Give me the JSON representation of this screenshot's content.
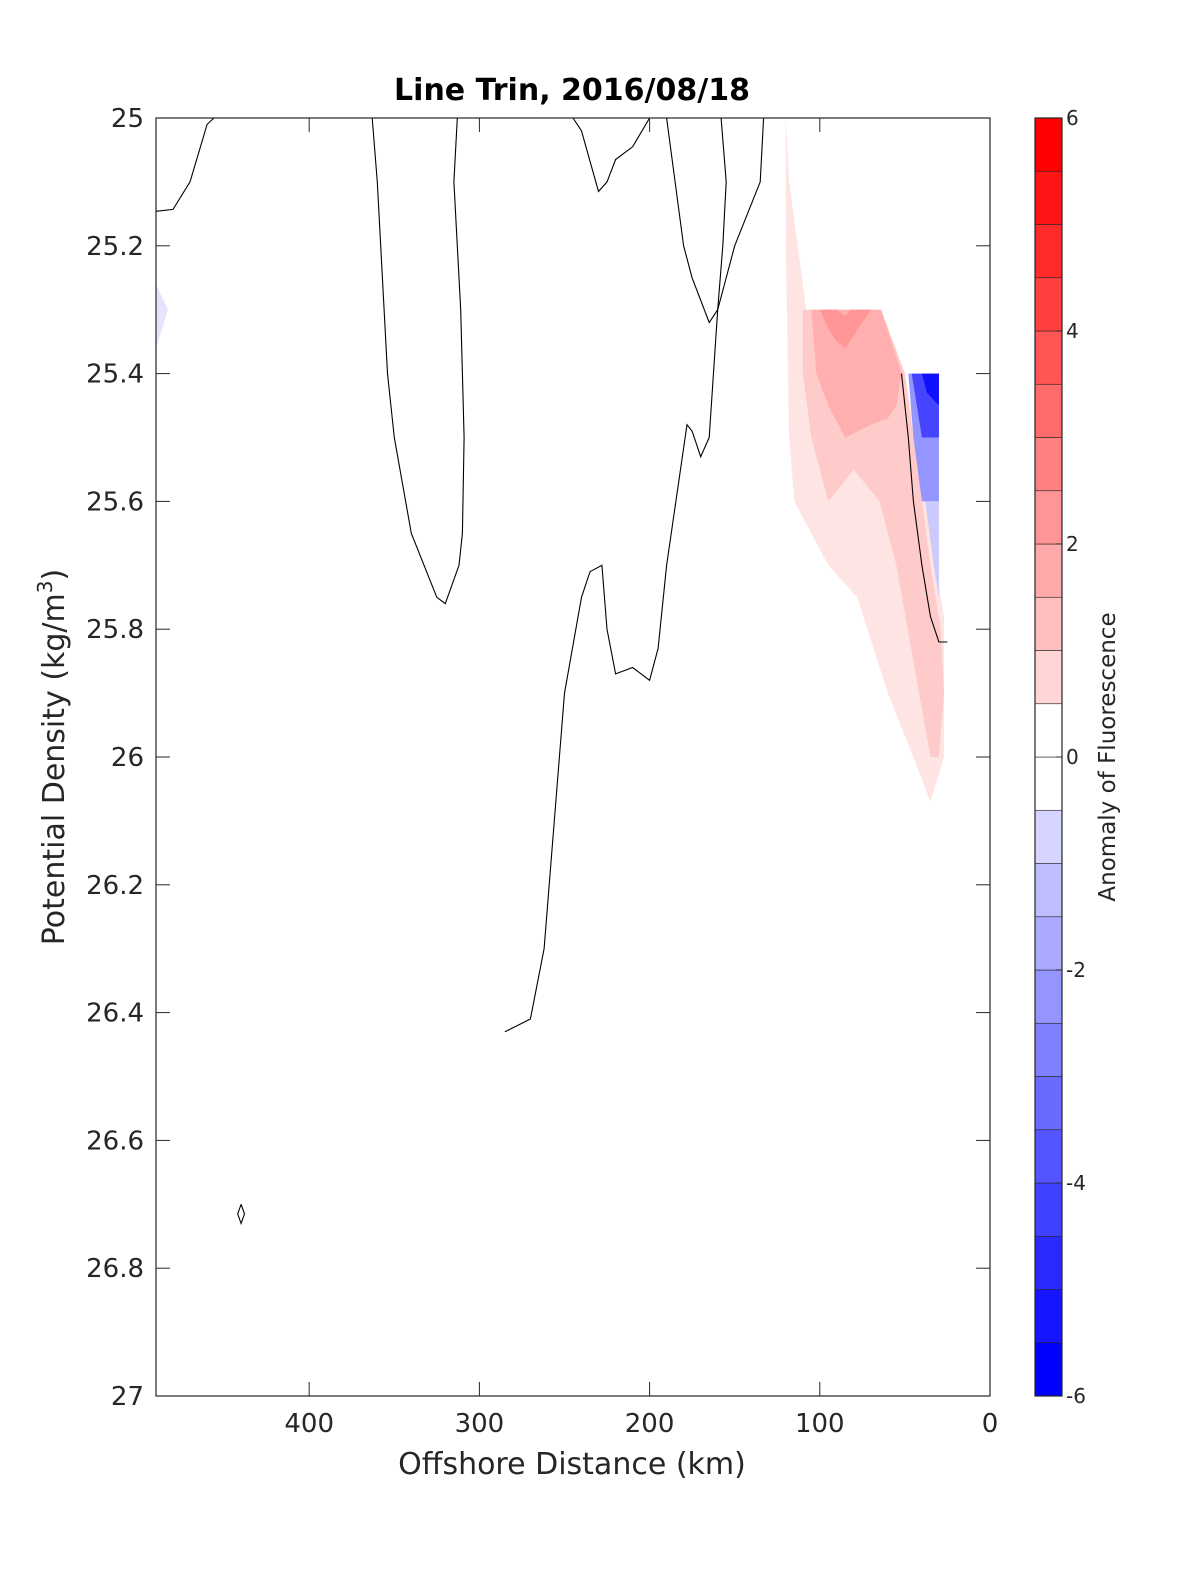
{
  "chart_data": {
    "type": "contour",
    "title": "Line Trin, 2016/08/18",
    "xlabel": "Offshore Distance (km)",
    "ylabel_main": "Potential Density (kg/m",
    "ylabel_sup": "3",
    "ylabel_close": ")",
    "xlim": [
      490,
      0
    ],
    "x_reversed": true,
    "ylim": [
      25,
      27
    ],
    "y_reversed": true,
    "xticks": [
      400,
      300,
      200,
      100,
      0
    ],
    "yticks": [
      25,
      25.2,
      25.4,
      25.6,
      25.8,
      26,
      26.2,
      26.4,
      26.6,
      26.8,
      27
    ],
    "ytick_labels": [
      "25",
      "25.2",
      "25.4",
      "25.6",
      "25.8",
      "26",
      "26.2",
      "26.4",
      "26.6",
      "26.8",
      "27"
    ],
    "xtick_labels": [
      "400",
      "300",
      "200",
      "100",
      "0"
    ],
    "colorbar": {
      "label": "Anomaly of Fluorescence",
      "lim": [
        -6,
        6
      ],
      "ticks": [
        -6,
        -4,
        -2,
        0,
        2,
        4,
        6
      ],
      "tick_labels": [
        "-6",
        "-4",
        "-2",
        "0",
        "2",
        "4",
        "6"
      ],
      "levels": [
        -6,
        -5.5,
        -5,
        -4.5,
        -4,
        -3.5,
        -3,
        -2.5,
        -2,
        -1.5,
        -1,
        -0.5,
        0,
        0.5,
        1,
        1.5,
        2,
        2.5,
        3,
        3.5,
        4,
        4.5,
        5,
        5.5,
        6
      ],
      "colormap": "blue-white-red"
    },
    "zero_contours": [
      [
        [
          490,
          25.146
        ],
        [
          480,
          25.143
        ],
        [
          470,
          25.1
        ],
        [
          460,
          25.01
        ],
        [
          456,
          25
        ]
      ],
      [
        [
          313,
          25
        ],
        [
          315,
          25.1
        ],
        [
          311,
          25.3
        ],
        [
          309,
          25.5
        ],
        [
          310,
          25.65
        ],
        [
          312,
          25.7
        ],
        [
          320,
          25.76
        ],
        [
          325,
          25.75
        ],
        [
          340,
          25.65
        ],
        [
          350,
          25.5
        ],
        [
          354,
          25.4
        ],
        [
          360,
          25.1
        ],
        [
          363,
          25
        ]
      ],
      [
        [
          245,
          25
        ],
        [
          240,
          25.02
        ],
        [
          230,
          25.115
        ],
        [
          225,
          25.1
        ],
        [
          220,
          25.065
        ],
        [
          210,
          25.045
        ],
        [
          200,
          25.0
        ]
      ],
      [
        [
          190,
          25
        ],
        [
          185,
          25.1
        ],
        [
          180,
          25.2
        ],
        [
          175,
          25.25
        ],
        [
          165,
          25.32
        ],
        [
          160,
          25.3
        ],
        [
          157,
          25.2
        ],
        [
          155,
          25.1
        ],
        [
          158,
          25.0
        ]
      ],
      [
        [
          133,
          25
        ],
        [
          135,
          25.1
        ],
        [
          150,
          25.2
        ],
        [
          160,
          25.3
        ],
        [
          165,
          25.5
        ],
        [
          170,
          25.53
        ],
        [
          175,
          25.49
        ],
        [
          178,
          25.48
        ],
        [
          190,
          25.7
        ],
        [
          195,
          25.83
        ],
        [
          200,
          25.88
        ],
        [
          210,
          25.86
        ],
        [
          220,
          25.87
        ],
        [
          225,
          25.8
        ],
        [
          228,
          25.7
        ],
        [
          235,
          25.71
        ],
        [
          240,
          25.75
        ],
        [
          250,
          25.9
        ],
        [
          262,
          26.3
        ],
        [
          270,
          26.41
        ],
        [
          285,
          26.43
        ]
      ],
      [
        [
          52,
          25.4
        ],
        [
          48,
          25.5
        ],
        [
          45,
          25.6
        ],
        [
          40,
          25.7
        ],
        [
          35,
          25.78
        ],
        [
          30,
          25.82
        ],
        [
          25,
          25.82
        ]
      ],
      [
        [
          440,
          26.7
        ],
        [
          438,
          26.715
        ],
        [
          440,
          26.73
        ],
        [
          442,
          26.715
        ],
        [
          440,
          26.7
        ]
      ]
    ],
    "filled_regions": [
      {
        "value": -0.5,
        "polygon": [
          [
            490,
            25.26
          ],
          [
            483,
            25.3
          ],
          [
            490,
            25.36
          ]
        ]
      },
      {
        "value": 0.5,
        "polygon": [
          [
            120,
            25.0
          ],
          [
            118,
            25.1
          ],
          [
            113,
            25.2
          ],
          [
            108,
            25.3
          ],
          [
            100,
            25.3
          ],
          [
            70,
            25.3
          ],
          [
            64,
            25.3
          ],
          [
            50,
            25.4
          ],
          [
            44,
            25.5
          ],
          [
            38,
            25.6
          ],
          [
            32,
            25.7
          ],
          [
            27,
            25.78
          ],
          [
            27,
            25.8
          ],
          [
            27,
            25.9
          ],
          [
            27,
            26.0
          ],
          [
            35,
            26.07
          ],
          [
            45,
            26.0
          ],
          [
            60,
            25.9
          ],
          [
            78,
            25.75
          ],
          [
            95,
            25.7
          ],
          [
            115,
            25.6
          ],
          [
            118,
            25.5
          ],
          [
            120,
            25.2
          ]
        ]
      },
      {
        "value": 1.0,
        "polygon": [
          [
            110,
            25.3
          ],
          [
            100,
            25.3
          ],
          [
            70,
            25.3
          ],
          [
            64,
            25.3
          ],
          [
            50,
            25.4
          ],
          [
            45,
            25.5
          ],
          [
            40,
            25.6
          ],
          [
            35,
            25.7
          ],
          [
            29,
            25.8
          ],
          [
            27,
            25.9
          ],
          [
            30,
            26.0
          ],
          [
            35,
            26.0
          ],
          [
            45,
            25.85
          ],
          [
            55,
            25.7
          ],
          [
            65,
            25.6
          ],
          [
            80,
            25.55
          ],
          [
            95,
            25.6
          ],
          [
            105,
            25.5
          ],
          [
            110,
            25.4
          ]
        ]
      },
      {
        "value": 1.5,
        "polygon": [
          [
            105,
            25.3
          ],
          [
            100,
            25.3
          ],
          [
            70,
            25.3
          ],
          [
            64,
            25.3
          ],
          [
            52,
            25.4
          ],
          [
            55,
            25.45
          ],
          [
            60,
            25.47
          ],
          [
            70,
            25.48
          ],
          [
            85,
            25.5
          ],
          [
            95,
            25.45
          ],
          [
            102,
            25.4
          ]
        ]
      },
      {
        "value": 2.0,
        "polygon": [
          [
            100,
            25.3
          ],
          [
            90,
            25.3
          ],
          [
            85,
            25.31
          ],
          [
            82,
            25.3
          ],
          [
            70,
            25.3
          ],
          [
            75,
            25.32
          ],
          [
            85,
            25.36
          ],
          [
            90,
            25.35
          ],
          [
            95,
            25.33
          ]
        ]
      },
      {
        "value": -2.0,
        "polygon": [
          [
            52,
            25.4
          ],
          [
            30,
            25.4
          ],
          [
            30,
            25.6
          ],
          [
            40,
            25.6
          ],
          [
            45,
            25.5
          ],
          [
            48,
            25.4
          ]
        ]
      },
      {
        "value": -3.5,
        "polygon": [
          [
            46,
            25.4
          ],
          [
            30,
            25.4
          ],
          [
            30,
            25.5
          ],
          [
            40,
            25.5
          ],
          [
            43,
            25.45
          ]
        ]
      },
      {
        "value": -4.5,
        "polygon": [
          [
            40,
            25.4
          ],
          [
            30,
            25.4
          ],
          [
            30,
            25.45
          ],
          [
            37,
            25.43
          ]
        ]
      },
      {
        "value": -1.0,
        "polygon": [
          [
            38,
            25.6
          ],
          [
            30,
            25.6
          ],
          [
            30,
            25.75
          ],
          [
            33,
            25.7
          ]
        ]
      }
    ]
  }
}
